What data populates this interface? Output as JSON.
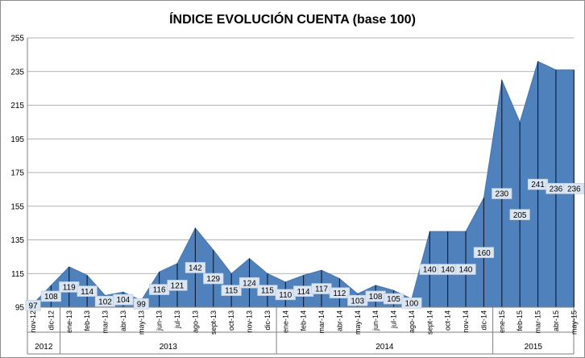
{
  "chart_data": {
    "type": "area",
    "title": "ÍNDICE EVOLUCIÓN CUENTA (base 100)",
    "xlabel": "",
    "ylabel": "",
    "ylim": [
      95,
      255
    ],
    "yticks": [
      95,
      115,
      135,
      155,
      175,
      195,
      215,
      235,
      255
    ],
    "categories": [
      "nov-12",
      "dic-12",
      "ene-13",
      "feb-13",
      "mar-13",
      "abr-13",
      "may-13",
      "jun-13",
      "jul-13",
      "ago-13",
      "sept-13",
      "oct-13",
      "nov-13",
      "dic-13",
      "ene-14",
      "feb-14",
      "mar-14",
      "abr-14",
      "may-14",
      "jun-14",
      "jul-14",
      "ago-14",
      "sept-14",
      "oct-14",
      "nov-14",
      "dic-14",
      "ene-15",
      "feb-15",
      "mar-15",
      "abr-15",
      "may-15"
    ],
    "values": [
      97,
      108,
      119,
      114,
      102,
      104,
      99,
      116,
      121,
      142,
      129,
      115,
      124,
      115,
      110,
      114,
      117,
      112,
      103,
      108,
      105,
      100,
      140,
      140,
      140,
      160,
      230,
      205,
      241,
      236,
      236
    ],
    "years": [
      {
        "label": "2012",
        "start": 0,
        "end": 1
      },
      {
        "label": "2013",
        "start": 2,
        "end": 13
      },
      {
        "label": "2014",
        "start": 14,
        "end": 25
      },
      {
        "label": "2015",
        "start": 26,
        "end": 30
      }
    ],
    "grid": true,
    "legend": "none",
    "colors": {
      "area": "#4f81bd",
      "drop_lines": "#0d1a2e",
      "label_box": "#dce6f2",
      "grid": "#9a9a9a"
    }
  }
}
